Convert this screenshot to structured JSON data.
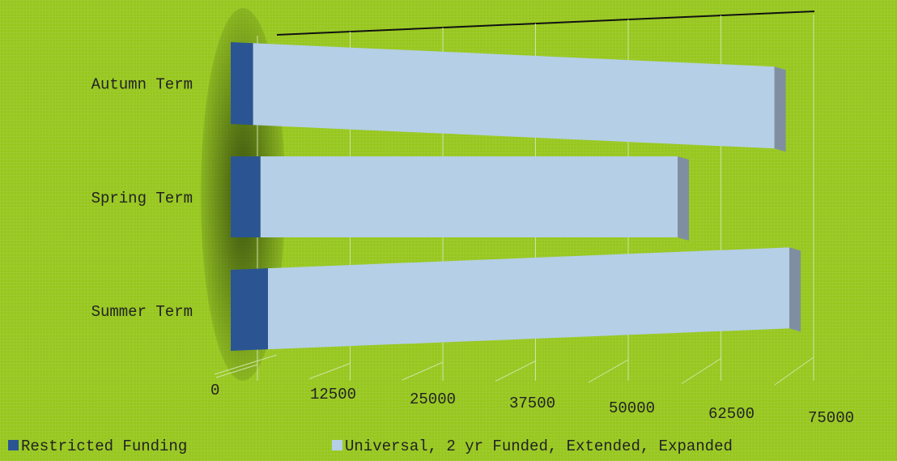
{
  "chart_data": {
    "type": "bar",
    "orientation": "horizontal",
    "three_d": true,
    "stacked": true,
    "categories": [
      "Autumn Term",
      "Spring Term",
      "Summer Term"
    ],
    "series": [
      {
        "name": "Restricted Funding",
        "values": [
          3000,
          4000,
          5000
        ],
        "color": "#2a5592"
      },
      {
        "name": "Universal, 2 yr Funded, Extended, Expanded",
        "values": [
          70000,
          56000,
          70000
        ],
        "color": "#b4cfe6"
      }
    ],
    "x_ticks": [
      "0",
      "12500",
      "25000",
      "37500",
      "50000",
      "62500",
      "75000"
    ],
    "xlim": [
      0,
      75000
    ],
    "grid": true,
    "legend_position": "bottom",
    "colors": {
      "background": "#97c71f",
      "side_face": "#7f8fa1"
    }
  }
}
